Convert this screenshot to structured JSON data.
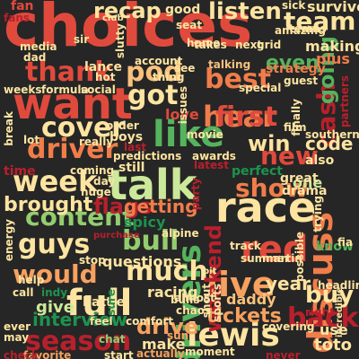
{
  "palette": {
    "background": "#262626",
    "red": "#e04a3c",
    "dark-red": "#b8202c",
    "orange": "#f07d4a",
    "light-orange": "#f6a15f",
    "peach": "#f8c27c",
    "yellow": "#fde4a0",
    "light-green": "#cce89a",
    "green": "#93cd6f",
    "mid-green": "#56b35d",
    "dark-green": "#1d934f"
  },
  "words": [
    {
      "text": "choices",
      "color": "red"
    },
    {
      "text": "want",
      "color": "red"
    },
    {
      "text": "talk",
      "color": "light-green"
    },
    {
      "text": "race",
      "color": "yellow"
    },
    {
      "text": "full",
      "color": "yellow"
    },
    {
      "text": "drivers",
      "color": "mid-green"
    },
    {
      "text": "discuss",
      "color": "orange"
    },
    {
      "text": "red",
      "color": "red"
    },
    {
      "text": "live",
      "color": "light-orange"
    },
    {
      "text": "lewis",
      "color": "yellow"
    },
    {
      "text": "like",
      "color": "mid-green"
    },
    {
      "text": "season",
      "color": "dark-red"
    },
    {
      "text": "content",
      "color": "green"
    },
    {
      "text": "guys",
      "color": "yellow"
    },
    {
      "text": "week",
      "color": "yellow"
    },
    {
      "text": "would",
      "color": "light-orange"
    },
    {
      "text": "much",
      "color": "yellow"
    },
    {
      "text": "cover",
      "color": "yellow"
    },
    {
      "text": "driver",
      "color": "orange"
    },
    {
      "text": "bull",
      "color": "green"
    },
    {
      "text": "weekend",
      "color": "dark-red"
    },
    {
      "text": "cash",
      "color": "dark-red"
    },
    {
      "text": "going",
      "color": "mid-green"
    },
    {
      "text": "pod",
      "color": "peach"
    },
    {
      "text": "hear",
      "color": "orange"
    },
    {
      "text": "first",
      "color": "red"
    },
    {
      "text": "thank",
      "color": "red"
    },
    {
      "text": "got",
      "color": "yellow"
    },
    {
      "text": "best",
      "color": "orange"
    },
    {
      "text": "back",
      "color": "dark-red"
    },
    {
      "text": "team",
      "color": "yellow"
    },
    {
      "text": "listen",
      "color": "yellow"
    },
    {
      "text": "show",
      "color": "orange"
    },
    {
      "text": "new",
      "color": "red"
    },
    {
      "text": "buy",
      "color": "yellow"
    },
    {
      "text": "win",
      "color": "yellow"
    },
    {
      "text": "recap",
      "color": "yellow"
    },
    {
      "text": "even",
      "color": "mid-green"
    },
    {
      "text": "interview",
      "color": "dark-green"
    },
    {
      "text": "drive",
      "color": "light-orange"
    },
    {
      "text": "tickets",
      "color": "light-orange"
    },
    {
      "text": "flags",
      "color": "dark-red"
    },
    {
      "text": "brought",
      "color": "yellow"
    },
    {
      "text": "getting",
      "color": "orange"
    },
    {
      "text": "code",
      "color": "yellow"
    },
    {
      "text": "year",
      "color": "yellow"
    },
    {
      "text": "questions",
      "color": "yellow"
    },
    {
      "text": "racing",
      "color": "yellow"
    },
    {
      "text": "give",
      "color": "light-green"
    },
    {
      "text": "make",
      "color": "yellow"
    },
    {
      "text": "spicy",
      "color": "dark-green"
    },
    {
      "text": "daddy",
      "color": "peach"
    },
    {
      "text": "toto",
      "color": "yellow"
    },
    {
      "text": "use",
      "color": "yellow"
    },
    {
      "text": "making",
      "color": "yellow"
    },
    {
      "text": "plus",
      "color": "orange"
    },
    {
      "text": "love",
      "color": "red"
    },
    {
      "text": "strategy",
      "color": "orange"
    },
    {
      "text": "good",
      "color": "yellow"
    },
    {
      "text": "fan",
      "color": "red"
    },
    {
      "text": "fans",
      "color": "dark-red"
    },
    {
      "text": "survive",
      "color": "yellow"
    },
    {
      "text": "one",
      "color": "light-green"
    },
    {
      "text": "drama",
      "color": "yellow"
    },
    {
      "text": "great",
      "color": "yellow"
    },
    {
      "text": "talking",
      "color": "peach"
    },
    {
      "text": "perfect",
      "color": "dark-green"
    },
    {
      "text": "also",
      "color": "yellow"
    },
    {
      "text": "boys",
      "color": "yellow"
    },
    {
      "text": "still",
      "color": "yellow"
    },
    {
      "text": "predictions",
      "color": "yellow"
    },
    {
      "text": "awards",
      "color": "yellow"
    },
    {
      "text": "latest",
      "color": "dark-red"
    },
    {
      "text": "coming",
      "color": "yellow"
    },
    {
      "text": "time",
      "color": "dark-red"
    },
    {
      "text": "huge",
      "color": "yellow"
    },
    {
      "text": "covering",
      "color": "yellow"
    },
    {
      "text": "moment",
      "color": "yellow"
    },
    {
      "text": "purchase",
      "color": "dark-red"
    },
    {
      "text": "battle",
      "color": "yellow"
    },
    {
      "text": "favorite",
      "color": "light-orange"
    },
    {
      "text": "start",
      "color": "yellow"
    },
    {
      "text": "check",
      "color": "dark-red"
    },
    {
      "text": "chat",
      "color": "green"
    },
    {
      "text": "sun",
      "color": "light-orange"
    },
    {
      "text": "actually",
      "color": "light-orange"
    },
    {
      "text": "never",
      "color": "dark-red"
    },
    {
      "text": "right",
      "color": "dark-red"
    },
    {
      "text": "sure",
      "color": "dark-green"
    },
    {
      "text": "alpine",
      "color": "yellow"
    },
    {
      "text": "track",
      "color": "yellow"
    },
    {
      "text": "summer",
      "color": "yellow"
    },
    {
      "text": "martin",
      "color": "yellow"
    },
    {
      "text": "possible",
      "color": "yellow"
    },
    {
      "text": "know",
      "color": "mid-green"
    },
    {
      "text": "fia",
      "color": "yellow"
    },
    {
      "text": "shout",
      "color": "yellow"
    },
    {
      "text": "sports",
      "color": "yellow"
    },
    {
      "text": "party",
      "color": "dark-red"
    },
    {
      "text": "stop",
      "color": "yellow"
    },
    {
      "text": "chaos",
      "color": "yellow"
    },
    {
      "text": "bulls",
      "color": "yellow"
    },
    {
      "text": "call",
      "color": "yellow"
    },
    {
      "text": "indy",
      "color": "dark-green"
    },
    {
      "text": "help",
      "color": "yellow"
    },
    {
      "text": "lot",
      "color": "yellow"
    },
    {
      "text": "really",
      "color": "yellow"
    },
    {
      "text": "order",
      "color": "yellow"
    },
    {
      "text": "last",
      "color": "dark-red"
    },
    {
      "text": "day",
      "color": "yellow"
    },
    {
      "text": "hot",
      "color": "yellow"
    },
    {
      "text": "social",
      "color": "yellow"
    },
    {
      "text": "formula",
      "color": "yellow"
    },
    {
      "text": "weeks",
      "color": "yellow"
    },
    {
      "text": "dad",
      "color": "yellow"
    },
    {
      "text": "media",
      "color": "yellow"
    },
    {
      "text": "lance",
      "color": "yellow"
    },
    {
      "text": "sir",
      "color": "yellow"
    },
    {
      "text": "club",
      "color": "yellow"
    },
    {
      "text": "seat",
      "color": "yellow"
    },
    {
      "text": "next",
      "color": "yellow"
    },
    {
      "text": "grid",
      "color": "yellow"
    },
    {
      "text": "takes",
      "color": "yellow"
    },
    {
      "text": "amazing",
      "color": "yellow"
    },
    {
      "text": "guest",
      "color": "yellow"
    },
    {
      "text": "southern",
      "color": "yellow"
    },
    {
      "text": "finally",
      "color": "yellow"
    },
    {
      "text": "film",
      "color": "yellow"
    },
    {
      "text": "teams",
      "color": "yellow"
    },
    {
      "text": "partners",
      "color": "dark-red"
    },
    {
      "text": "sick",
      "color": "yellow"
    },
    {
      "text": "home",
      "color": "yellow"
    },
    {
      "text": "account",
      "color": "yellow"
    },
    {
      "text": "see",
      "color": "yellow"
    },
    {
      "text": "break",
      "color": "yellow"
    },
    {
      "text": "energy",
      "color": "yellow"
    },
    {
      "text": "trying",
      "color": "yellow"
    },
    {
      "text": "incredible",
      "color": "yellow"
    },
    {
      "text": "headlines",
      "color": "yellow"
    },
    {
      "text": "comfort",
      "color": "yellow"
    },
    {
      "text": "almost",
      "color": "yellow"
    },
    {
      "text": "feel",
      "color": "yellow"
    },
    {
      "text": "pit",
      "color": "yellow"
    },
    {
      "text": "may",
      "color": "yellow"
    },
    {
      "text": "ever",
      "color": "yellow"
    },
    {
      "text": "thing",
      "color": "yellow"
    },
    {
      "text": "movie",
      "color": "yellow"
    },
    {
      "text": "issues",
      "color": "yellow"
    },
    {
      "text": "slutty",
      "color": "yellow"
    },
    {
      "text": "special",
      "color": "yellow"
    }
  ]
}
